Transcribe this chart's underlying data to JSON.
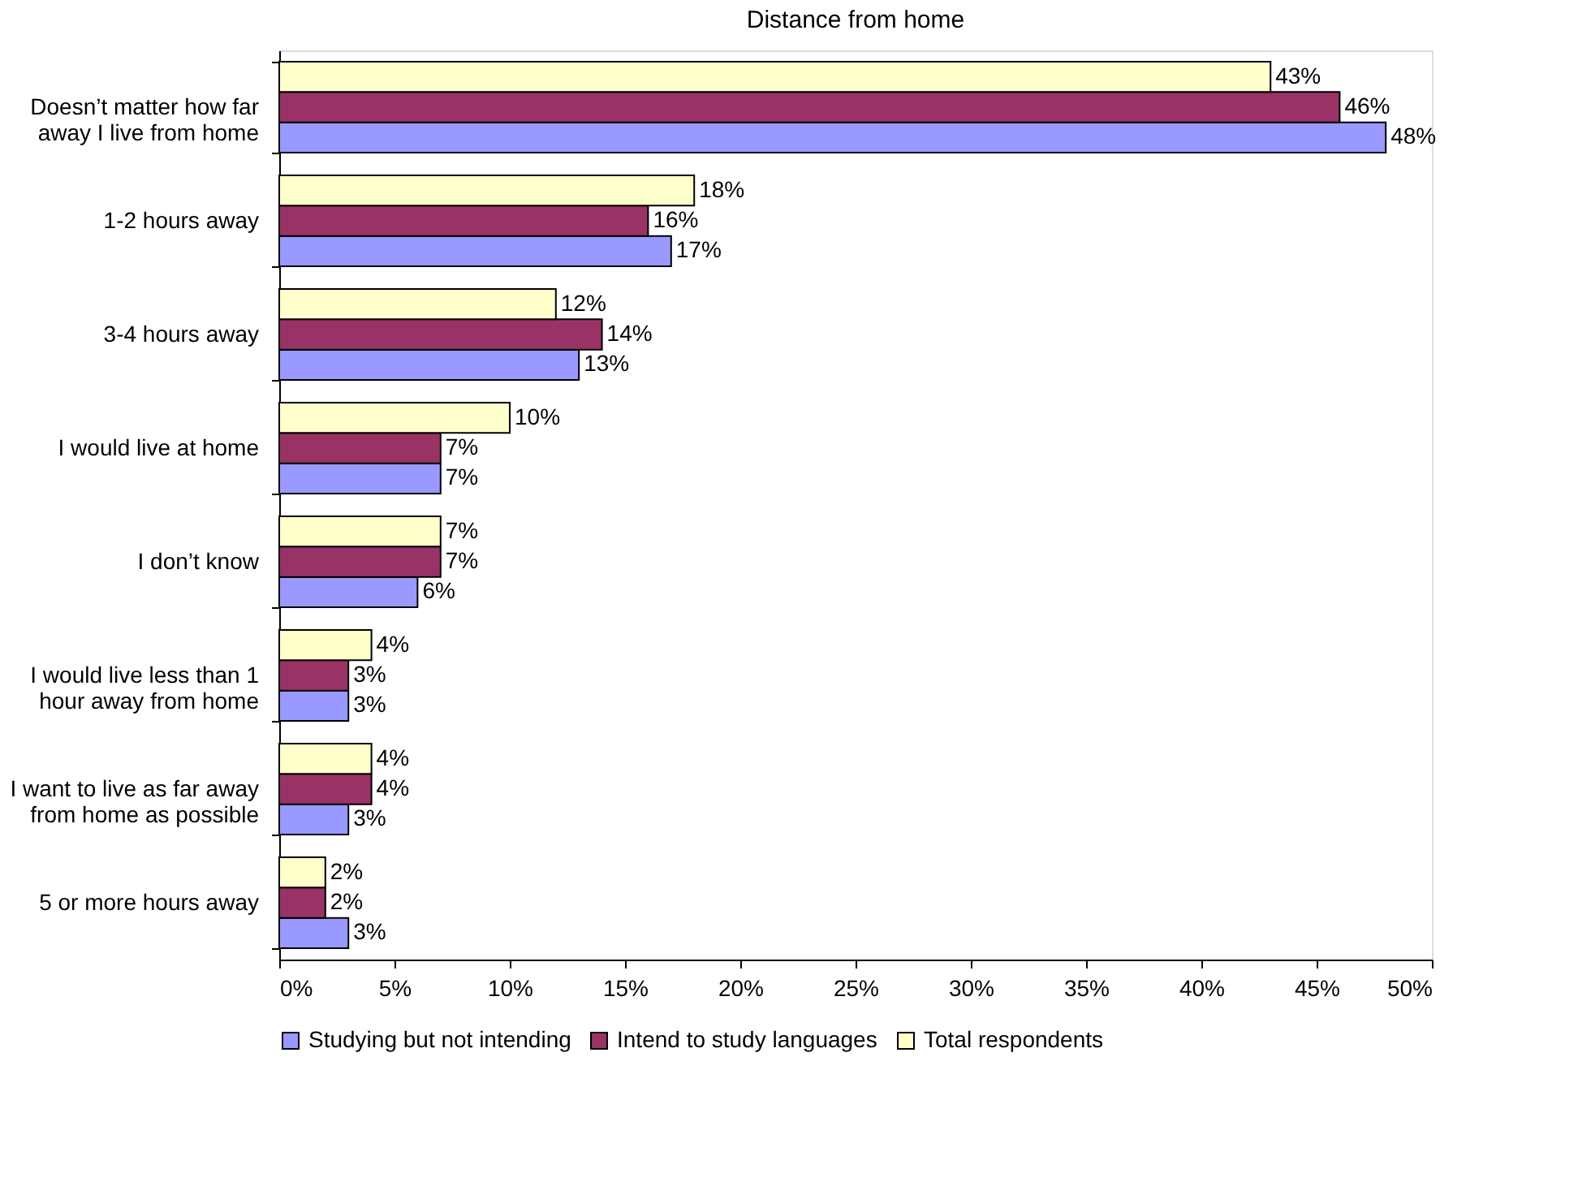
{
  "chart_data": {
    "type": "bar",
    "orientation": "horizontal",
    "title": "Distance from home",
    "categories": [
      "Doesn’t matter how far\naway I live from home",
      "1-2 hours away",
      "3-4 hours away",
      "I would live at home",
      "I don’t know",
      "I would live less than 1\nhour away from home",
      "I want to live as far away\nfrom home as possible",
      "5 or more hours away"
    ],
    "series": [
      {
        "name": "Studying but not intending",
        "color": "#9999ff",
        "values": [
          48,
          17,
          13,
          7,
          6,
          3,
          3,
          3
        ],
        "value_labels": [
          "48%",
          "17%",
          "13%",
          "7%",
          "6%",
          "3%",
          "3%",
          "3%"
        ]
      },
      {
        "name": "Intend to study languages",
        "color": "#993366",
        "values": [
          46,
          16,
          14,
          7,
          7,
          3,
          4,
          2
        ],
        "value_labels": [
          "46%",
          "16%",
          "14%",
          "7%",
          "7%",
          "3%",
          "4%",
          "2%"
        ]
      },
      {
        "name": "Total respondents",
        "color": "#ffffcc",
        "values": [
          43,
          18,
          12,
          10,
          7,
          4,
          4,
          2
        ],
        "value_labels": [
          "43%",
          "18%",
          "12%",
          "10%",
          "7%",
          "4%",
          "4%",
          "2%"
        ]
      }
    ],
    "xlim": [
      0,
      50
    ],
    "xticks": [
      {
        "value": 0,
        "label": "0%"
      },
      {
        "value": 5,
        "label": "5%"
      },
      {
        "value": 10,
        "label": "10%"
      },
      {
        "value": 15,
        "label": "15%"
      },
      {
        "value": 20,
        "label": "20%"
      },
      {
        "value": 25,
        "label": "25%"
      },
      {
        "value": 30,
        "label": "30%"
      },
      {
        "value": 35,
        "label": "35%"
      },
      {
        "value": 40,
        "label": "40%"
      },
      {
        "value": 45,
        "label": "45%"
      },
      {
        "value": 50,
        "label": "50%"
      }
    ],
    "grid": false,
    "legend": "bottom"
  }
}
